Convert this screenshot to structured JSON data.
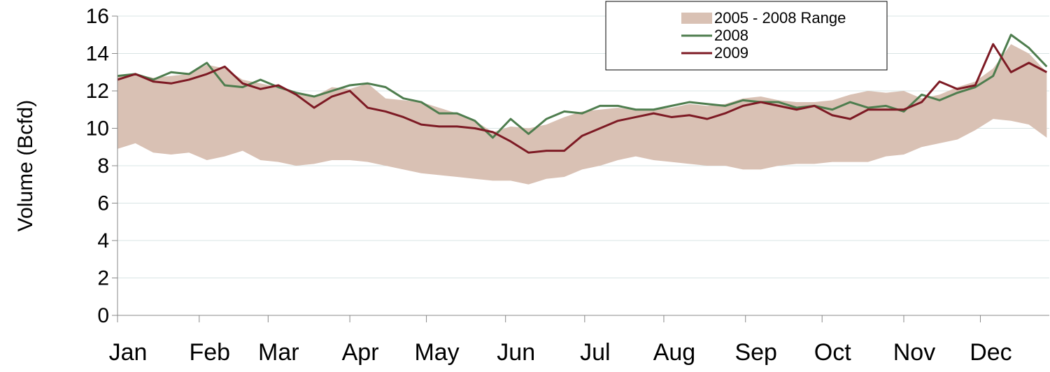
{
  "chart_data": {
    "type": "line",
    "y_label": "Volume (Bcfd)",
    "x": [
      0,
      7,
      14,
      21,
      28,
      35,
      42,
      49,
      56,
      63,
      70,
      77,
      84,
      91,
      98,
      105,
      112,
      119,
      126,
      133,
      140,
      147,
      154,
      161,
      168,
      175,
      182,
      189,
      196,
      203,
      210,
      217,
      224,
      231,
      238,
      245,
      252,
      259,
      266,
      273,
      280,
      287,
      294,
      301,
      308,
      315,
      322,
      329,
      336,
      343,
      350,
      357,
      364
    ],
    "xlim": [
      0,
      365
    ],
    "xticks": [
      {
        "value": 0,
        "label": "Jan"
      },
      {
        "value": 32,
        "label": "Feb"
      },
      {
        "value": 59,
        "label": "Mar"
      },
      {
        "value": 91,
        "label": "Apr"
      },
      {
        "value": 121,
        "label": "May"
      },
      {
        "value": 152,
        "label": "Jun"
      },
      {
        "value": 183,
        "label": "Jul"
      },
      {
        "value": 214,
        "label": "Aug"
      },
      {
        "value": 246,
        "label": "Sep"
      },
      {
        "value": 276,
        "label": "Oct"
      },
      {
        "value": 308,
        "label": "Nov"
      },
      {
        "value": 338,
        "label": "Dec"
      }
    ],
    "ylim": [
      0,
      16
    ],
    "yticks": [
      0,
      2,
      4,
      6,
      8,
      10,
      12,
      14,
      16
    ],
    "grid": true,
    "legend": "top-right",
    "series": [
      {
        "name": "2005 - 2008 Range",
        "kind": "range",
        "color": "#d9c1b4",
        "low": [
          8.9,
          9.2,
          8.7,
          8.6,
          8.7,
          8.3,
          8.5,
          8.8,
          8.3,
          8.2,
          8.0,
          8.1,
          8.3,
          8.3,
          8.2,
          8.0,
          7.8,
          7.6,
          7.5,
          7.4,
          7.3,
          7.2,
          7.2,
          7.0,
          7.3,
          7.4,
          7.8,
          8.0,
          8.3,
          8.5,
          8.3,
          8.2,
          8.1,
          8.0,
          8.0,
          7.8,
          7.8,
          8.0,
          8.1,
          8.1,
          8.2,
          8.2,
          8.2,
          8.5,
          8.6,
          9.0,
          9.2,
          9.4,
          9.9,
          10.5,
          10.4,
          10.2,
          9.5
        ],
        "high": [
          12.8,
          12.9,
          12.7,
          12.8,
          12.9,
          13.4,
          13.2,
          12.6,
          12.4,
          12.2,
          11.9,
          11.7,
          12.2,
          12.1,
          12.4,
          11.6,
          11.5,
          11.4,
          11.1,
          10.8,
          10.4,
          9.8,
          10.1,
          10.0,
          10.2,
          10.6,
          10.9,
          11.0,
          11.1,
          11.0,
          11.0,
          11.1,
          11.3,
          11.2,
          11.3,
          11.6,
          11.7,
          11.5,
          11.4,
          11.4,
          11.5,
          11.8,
          12.0,
          11.9,
          12.0,
          11.6,
          11.8,
          12.2,
          12.5,
          13.2,
          14.5,
          14.0,
          13.0
        ]
      },
      {
        "name": "2008",
        "color": "#4e7d4e",
        "values": [
          12.8,
          12.9,
          12.6,
          13.0,
          12.9,
          13.5,
          12.3,
          12.2,
          12.6,
          12.2,
          11.9,
          11.7,
          12.0,
          12.3,
          12.4,
          12.2,
          11.6,
          11.4,
          10.8,
          10.8,
          10.4,
          9.5,
          10.5,
          9.7,
          10.5,
          10.9,
          10.8,
          11.2,
          11.2,
          11.0,
          11.0,
          11.2,
          11.4,
          11.3,
          11.2,
          11.5,
          11.4,
          11.4,
          11.1,
          11.2,
          11.0,
          11.4,
          11.1,
          11.2,
          10.9,
          11.8,
          11.5,
          11.9,
          12.2,
          12.8,
          15.0,
          14.3,
          13.3
        ]
      },
      {
        "name": "2009",
        "color": "#7d1a24",
        "values": [
          12.6,
          12.9,
          12.5,
          12.4,
          12.6,
          12.9,
          13.3,
          12.4,
          12.1,
          12.3,
          11.8,
          11.1,
          11.7,
          12.0,
          11.1,
          10.9,
          10.6,
          10.2,
          10.1,
          10.1,
          10.0,
          9.8,
          9.3,
          8.7,
          8.8,
          8.8,
          9.6,
          10.0,
          10.4,
          10.6,
          10.8,
          10.6,
          10.7,
          10.5,
          10.8,
          11.2,
          11.4,
          11.2,
          11.0,
          11.2,
          10.7,
          10.5,
          11.0,
          11.0,
          11.0,
          11.4,
          12.5,
          12.1,
          12.3,
          14.5,
          13.0,
          13.5,
          13.0
        ]
      }
    ]
  }
}
